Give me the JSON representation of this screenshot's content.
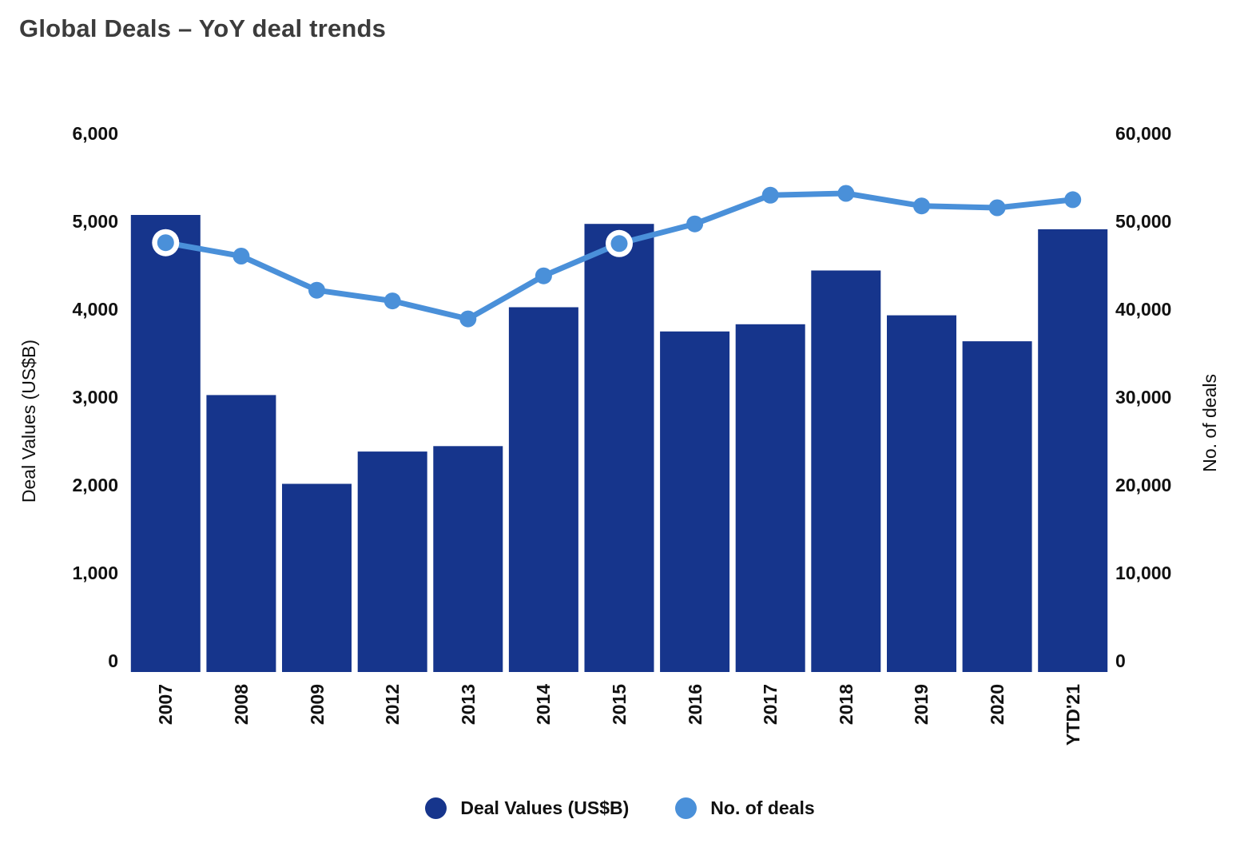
{
  "chart_data": {
    "type": "combo-bar-line",
    "title": "Global Deals – YoY deal trends",
    "categories": [
      "2007",
      "2008",
      "2009",
      "2012",
      "2013",
      "2014",
      "2015",
      "2016",
      "2017",
      "2018",
      "2019",
      "2020",
      "YTD'21"
    ],
    "series": [
      {
        "name": "Deal Values (US$B)",
        "type": "bar",
        "axis": "left",
        "color": "#16358c",
        "values": [
          5100,
          3090,
          2100,
          2460,
          2520,
          4070,
          5000,
          3800,
          3880,
          4480,
          3980,
          3690,
          4940
        ]
      },
      {
        "name": "No. of deals",
        "type": "line",
        "axis": "right",
        "color": "#4a90d9",
        "values": [
          47900,
          46400,
          42600,
          41400,
          39400,
          44200,
          47800,
          50000,
          53200,
          53400,
          52000,
          51800,
          52700
        ],
        "highlighted_indices": [
          0,
          6
        ],
        "highlight_ring_color": "#ffffff"
      }
    ],
    "left_axis": {
      "title": "Deal Values (US$B)",
      "min": 0,
      "max": 6000,
      "ticks": [
        {
          "label": "0",
          "value": 0
        },
        {
          "label": "1,000",
          "value": 1000
        },
        {
          "label": "2,000",
          "value": 2000
        },
        {
          "label": "3,000",
          "value": 3000
        },
        {
          "label": "4,000",
          "value": 4000
        },
        {
          "label": "5,000",
          "value": 5000
        },
        {
          "label": "6,000",
          "value": 6000
        }
      ]
    },
    "right_axis": {
      "title": "No. of deals",
      "min": 0,
      "max": 60000,
      "ticks": [
        {
          "label": "0",
          "value": 0
        },
        {
          "label": "10,000",
          "value": 10000
        },
        {
          "label": "20,000",
          "value": 20000
        },
        {
          "label": "30,000",
          "value": 30000
        },
        {
          "label": "40,000",
          "value": 40000
        },
        {
          "label": "50,000",
          "value": 50000
        },
        {
          "label": "60,000",
          "value": 60000
        }
      ]
    },
    "grid": false,
    "legend_position": "bottom"
  }
}
